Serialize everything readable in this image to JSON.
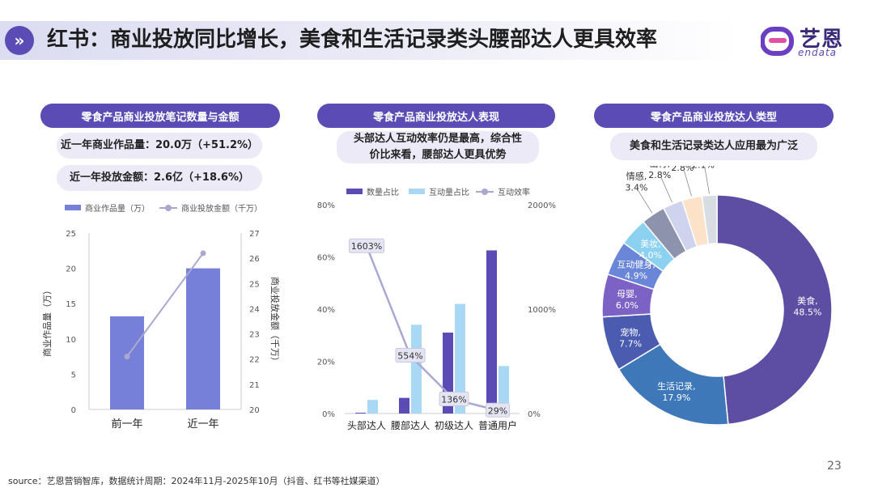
{
  "header": {
    "title": "红书：商业投放同比增长，美食和生活记录类头腰部达人更具效率",
    "logo_text": "艺恩",
    "logo_sub": "endata",
    "icon": "double-chevron-right-icon"
  },
  "left": {
    "pill": "零食产品商业投放笔记数量与金额",
    "stat1": "近一年商业作品量：20.0万（+51.2%）",
    "stat2": "近一年投放金额：2.6亿（+18.6%）"
  },
  "middle": {
    "pill": "零食产品商业投放达人表现",
    "note_line1": "头部达人互动效率仍是最高，综合性",
    "note_line2": "价比来看，腰部达人更具优势"
  },
  "right": {
    "pill": "零食产品商业投放达人类型",
    "note": "美食和生活记录类达人应用最为广泛"
  },
  "chart_data": [
    {
      "type": "bar",
      "categories": [
        "前一年",
        "近一年"
      ],
      "series": [
        {
          "name": "商业作品量（万）",
          "type": "bar",
          "axis": "left",
          "values": [
            13.2,
            20.0
          ]
        },
        {
          "name": "商业投放金额（千万）",
          "type": "line",
          "axis": "right",
          "values": [
            22.1,
            26.2
          ]
        }
      ],
      "ylabel": "商业作品量（万）",
      "y2label": "商业投放金额（千万）",
      "ylim": [
        0,
        25
      ],
      "y2lim": [
        20,
        27
      ],
      "yticks": [
        "0",
        "5",
        "10",
        "15",
        "20",
        "25"
      ],
      "y2ticks": [
        "20",
        "21",
        "22",
        "23",
        "24",
        "25",
        "26",
        "27"
      ],
      "legend": "top",
      "grid": false
    },
    {
      "type": "bar",
      "categories": [
        "头部达人",
        "腰部达人",
        "初级达人",
        "普通用户"
      ],
      "series": [
        {
          "name": "数量占比",
          "type": "bar",
          "axis": "left",
          "values": [
            0.3,
            6,
            31,
            62.5
          ]
        },
        {
          "name": "互动量占比",
          "type": "bar",
          "axis": "left",
          "values": [
            5.2,
            34,
            42,
            18.2
          ]
        },
        {
          "name": "互动效率",
          "type": "line",
          "axis": "right",
          "values": [
            1603,
            554,
            136,
            29
          ],
          "labels": [
            "1603%",
            "554%",
            "136%",
            "29%"
          ]
        }
      ],
      "ylim": [
        0,
        80
      ],
      "y2lim": [
        0,
        2000
      ],
      "yticks": [
        "0%",
        "20%",
        "40%",
        "60%",
        "80%"
      ],
      "y2ticks": [
        "0%",
        "1000%",
        "2000%"
      ],
      "legend": "top",
      "grid": false
    },
    {
      "type": "pie",
      "donut": true,
      "slices": [
        {
          "label": "美食,",
          "pct": "48.5%",
          "value": 48.5,
          "color": "#5e4ea3"
        },
        {
          "label": "生活记录,",
          "pct": "17.9%",
          "value": 17.9,
          "color": "#3f78b9"
        },
        {
          "label": "宠物,",
          "pct": "7.7%",
          "value": 7.7,
          "color": "#4b5bb0"
        },
        {
          "label": "母婴,",
          "pct": "6.0%",
          "value": 6.0,
          "color": "#7d62c6"
        },
        {
          "label": "互动健身,",
          "pct": "4.9%",
          "value": 4.9,
          "color": "#6a86d8"
        },
        {
          "label": "美妆,",
          "pct": "4.0%",
          "value": 4.0,
          "color": "#8cd1ef"
        },
        {
          "label": "情感,",
          "pct": "3.4%",
          "value": 3.4,
          "color": "#8e93ad"
        },
        {
          "label": "出行,",
          "pct": "2.8%",
          "value": 2.8,
          "color": "#cfd3ee"
        },
        {
          "label": "兴趣爱好,",
          "pct": "2.8%",
          "value": 2.8,
          "color": "#fbe2c9"
        },
        {
          "label": "其他,",
          "pct": "2.1%",
          "value": 2.1,
          "color": "#d7dde2"
        }
      ]
    }
  ],
  "footer": {
    "source": "source：艺恩营销智库，数据统计周期：2024年11月-2025年10月（抖音、红书等社媒渠道）",
    "page": "23"
  }
}
